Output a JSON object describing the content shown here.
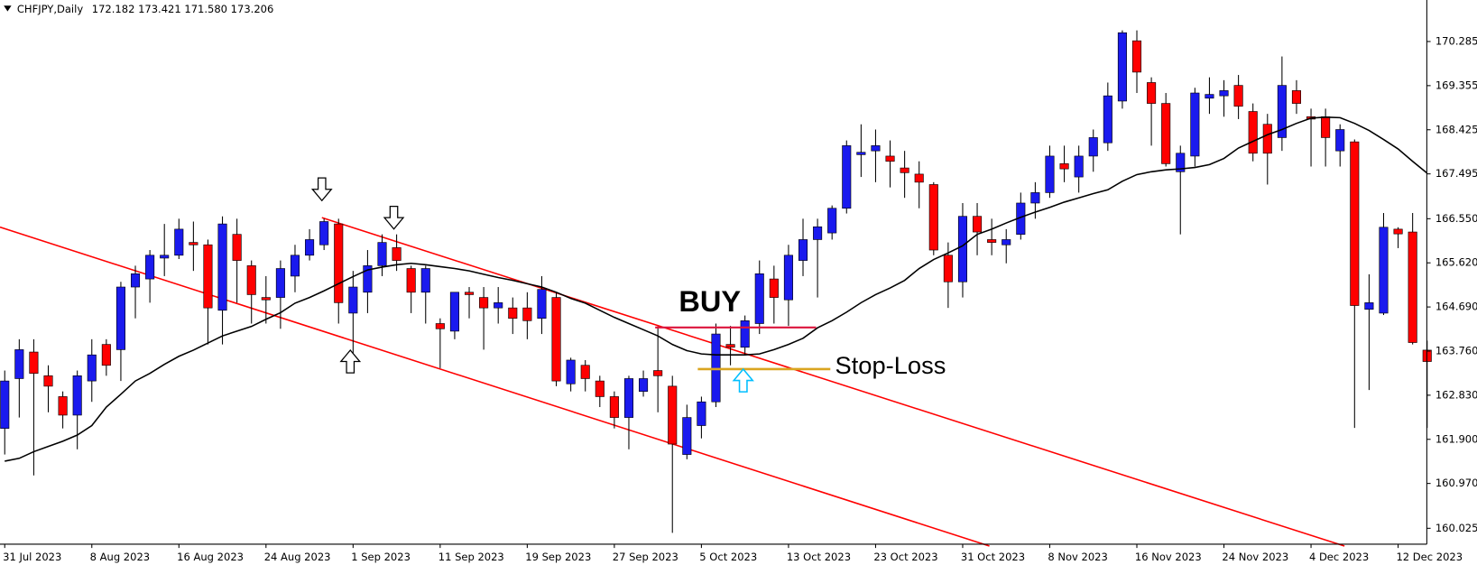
{
  "chart_data": {
    "type": "candlestick",
    "title": "CHFJPY,Daily",
    "quote": "172.182 173.421 171.580 173.206",
    "categories": [
      "31 Jul 2023",
      null,
      null,
      null,
      null,
      null,
      "8 Aug 2023",
      null,
      null,
      null,
      null,
      null,
      "16 Aug 2023",
      null,
      null,
      null,
      null,
      null,
      "24 Aug 2023",
      null,
      null,
      null,
      null,
      null,
      "1 Sep 2023",
      null,
      null,
      null,
      null,
      null,
      "11 Sep 2023",
      null,
      null,
      null,
      null,
      null,
      "19 Sep 2023",
      null,
      null,
      null,
      null,
      null,
      "27 Sep 2023",
      null,
      null,
      null,
      null,
      null,
      "5 Oct 2023",
      null,
      null,
      null,
      null,
      null,
      "13 Oct 2023",
      null,
      null,
      null,
      null,
      null,
      "23 Oct 2023",
      null,
      null,
      null,
      null,
      null,
      "31 Oct 2023",
      null,
      null,
      null,
      null,
      null,
      "8 Nov 2023",
      null,
      null,
      null,
      null,
      null,
      "16 Nov 2023",
      null,
      null,
      null,
      null,
      null,
      "24 Nov 2023",
      null,
      null,
      null,
      null,
      null,
      "4 Dec 2023",
      null,
      null,
      null,
      null,
      null,
      "12 Dec 2023",
      null,
      null
    ],
    "open": [
      162.13,
      163.18,
      163.74,
      163.24,
      162.8,
      162.41,
      163.13,
      163.9,
      163.79,
      165.11,
      165.28,
      165.72,
      165.78,
      166.05,
      166.0,
      164.62,
      166.22,
      165.56,
      164.89,
      164.89,
      165.34,
      165.78,
      166.0,
      166.44,
      164.56,
      165.0,
      165.56,
      165.94,
      165.5,
      165.0,
      164.34,
      164.18,
      165.0,
      164.89,
      164.67,
      164.67,
      164.67,
      164.45,
      164.89,
      163.07,
      163.46,
      163.13,
      162.8,
      162.36,
      162.91,
      163.35,
      163.02,
      161.58,
      162.19,
      162.69,
      163.9,
      163.84,
      164.34,
      165.28,
      164.84,
      165.67,
      166.11,
      166.25,
      166.77,
      167.9,
      167.98,
      167.87,
      167.62,
      167.49,
      167.27,
      165.78,
      165.22,
      166.6,
      166.11,
      166.0,
      166.22,
      166.88,
      167.1,
      167.71,
      167.43,
      167.87,
      168.15,
      169.03,
      170.3,
      169.42,
      168.98,
      167.54,
      167.87,
      169.09,
      169.14,
      169.36,
      168.81,
      168.54,
      168.26,
      169.25,
      168.7,
      168.7,
      167.98,
      168.17,
      164.64,
      164.56,
      166.33,
      166.27,
      163.78
    ],
    "high": [
      163.35,
      164.01,
      164.01,
      163.46,
      162.91,
      163.35,
      164.01,
      164.01,
      165.22,
      165.56,
      165.89,
      166.44,
      166.55,
      166.49,
      166.11,
      166.6,
      166.55,
      165.67,
      165.34,
      165.67,
      166.0,
      166.33,
      166.55,
      166.55,
      165.45,
      165.89,
      166.22,
      166.22,
      165.56,
      165.56,
      164.45,
      165.0,
      165.11,
      165.11,
      165.11,
      164.89,
      165.0,
      165.34,
      165.0,
      163.62,
      163.57,
      163.24,
      162.91,
      163.24,
      163.35,
      164.28,
      163.24,
      162.63,
      162.8,
      164.34,
      164.29,
      164.51,
      165.67,
      165.56,
      166.0,
      166.55,
      166.55,
      166.83,
      168.2,
      168.54,
      168.43,
      168.2,
      167.98,
      167.76,
      167.32,
      166.05,
      166.88,
      166.88,
      166.55,
      166.33,
      167.1,
      167.32,
      168.09,
      168.09,
      168.09,
      168.43,
      169.42,
      170.52,
      170.52,
      169.53,
      169.2,
      168.09,
      169.31,
      169.53,
      169.47,
      169.58,
      168.98,
      168.76,
      169.97,
      169.47,
      168.87,
      168.87,
      168.54,
      168.22,
      165.38,
      166.67,
      166.37,
      166.67,
      163.98
    ],
    "low": [
      161.58,
      162.36,
      161.14,
      162.47,
      162.13,
      161.69,
      162.69,
      163.24,
      163.13,
      164.45,
      164.78,
      165.34,
      165.7,
      165.45,
      163.9,
      163.9,
      164.78,
      164.34,
      164.34,
      164.23,
      165.0,
      165.67,
      165.89,
      164.34,
      163.4,
      164.56,
      165.34,
      165.45,
      164.56,
      164.34,
      163.4,
      164.01,
      164.45,
      163.79,
      164.34,
      164.12,
      164.01,
      164.12,
      163.02,
      162.91,
      162.91,
      162.58,
      162.13,
      161.69,
      162.8,
      162.47,
      159.93,
      161.48,
      161.92,
      162.58,
      163.46,
      163.68,
      164.12,
      164.34,
      164.29,
      165.34,
      164.89,
      166.11,
      166.66,
      167.43,
      167.32,
      167.21,
      166.99,
      166.77,
      165.78,
      164.67,
      164.89,
      165.78,
      165.78,
      165.61,
      166.11,
      166.55,
      166.99,
      167.32,
      167.1,
      167.54,
      167.98,
      168.87,
      169.2,
      168.09,
      167.65,
      166.22,
      167.65,
      168.76,
      168.7,
      168.65,
      167.76,
      167.27,
      167.98,
      168.76,
      167.65,
      167.65,
      167.65,
      162.14,
      162.94,
      164.52,
      165.93,
      163.9,
      162.14
    ],
    "close": [
      163.13,
      163.79,
      163.29,
      163.02,
      162.41,
      163.24,
      163.68,
      163.46,
      165.11,
      165.39,
      165.78,
      165.78,
      166.33,
      166.0,
      164.67,
      166.44,
      165.67,
      164.95,
      164.84,
      165.5,
      165.78,
      166.11,
      166.49,
      164.78,
      165.11,
      165.56,
      166.05,
      165.67,
      165.0,
      165.5,
      164.23,
      165.0,
      164.95,
      164.67,
      164.78,
      164.45,
      164.4,
      165.06,
      163.13,
      163.57,
      163.18,
      162.8,
      162.36,
      163.18,
      163.18,
      163.24,
      161.8,
      162.36,
      162.69,
      164.12,
      163.84,
      164.4,
      165.39,
      164.89,
      165.78,
      166.11,
      166.38,
      166.77,
      168.09,
      167.95,
      168.09,
      167.76,
      167.52,
      167.32,
      165.89,
      165.22,
      166.6,
      166.27,
      166.05,
      166.11,
      166.88,
      167.1,
      167.87,
      167.6,
      167.87,
      168.26,
      169.14,
      170.47,
      169.64,
      168.98,
      167.71,
      167.93,
      169.2,
      169.17,
      169.25,
      168.92,
      167.93,
      167.93,
      169.36,
      168.98,
      168.65,
      168.26,
      168.43,
      164.72,
      164.78,
      166.37,
      166.23,
      163.94,
      163.54
    ],
    "up_color": "#1a1aee",
    "down_color": "#ff0000",
    "moving_average": {
      "color": "#000000",
      "values": [
        161.44,
        161.5,
        161.64,
        161.75,
        161.86,
        161.99,
        162.19,
        162.58,
        162.85,
        163.13,
        163.29,
        163.48,
        163.65,
        163.78,
        163.93,
        164.08,
        164.18,
        164.28,
        164.43,
        164.57,
        164.77,
        164.89,
        165.03,
        165.18,
        165.33,
        165.47,
        165.53,
        165.58,
        165.61,
        165.58,
        165.54,
        165.5,
        165.45,
        165.38,
        165.31,
        165.25,
        165.18,
        165.11,
        165.0,
        164.87,
        164.77,
        164.62,
        164.47,
        164.34,
        164.21,
        164.08,
        163.9,
        163.77,
        163.7,
        163.68,
        163.68,
        163.68,
        163.7,
        163.79,
        163.9,
        164.03,
        164.25,
        164.4,
        164.58,
        164.78,
        164.95,
        165.09,
        165.25,
        165.5,
        165.69,
        165.83,
        165.98,
        166.22,
        166.33,
        166.46,
        166.58,
        166.69,
        166.79,
        166.9,
        166.99,
        167.08,
        167.16,
        167.34,
        167.48,
        167.54,
        167.58,
        167.6,
        167.63,
        167.69,
        167.82,
        168.04,
        168.18,
        168.32,
        168.43,
        168.56,
        168.67,
        168.69,
        168.68,
        168.56,
        168.41,
        168.22,
        168.02,
        167.76,
        167.51
      ]
    },
    "annotations": [
      "BUY",
      "Stop-Loss"
    ],
    "ylim": [
      159.69,
      171.16
    ],
    "yticks": [
      170.285,
      169.355,
      168.425,
      167.495,
      {
        "value": 166.55,
        "label": "166.550"
      },
      {
        "value": 165.62,
        "label": "165.620"
      },
      {
        "value": 164.69,
        "label": "164.690"
      },
      {
        "value": 163.76,
        "label": "163.760"
      },
      {
        "value": 162.83,
        "label": "162.830"
      },
      {
        "value": 161.9,
        "label": "161.900"
      },
      {
        "value": 160.97,
        "label": "160.970"
      },
      160.025
    ]
  }
}
